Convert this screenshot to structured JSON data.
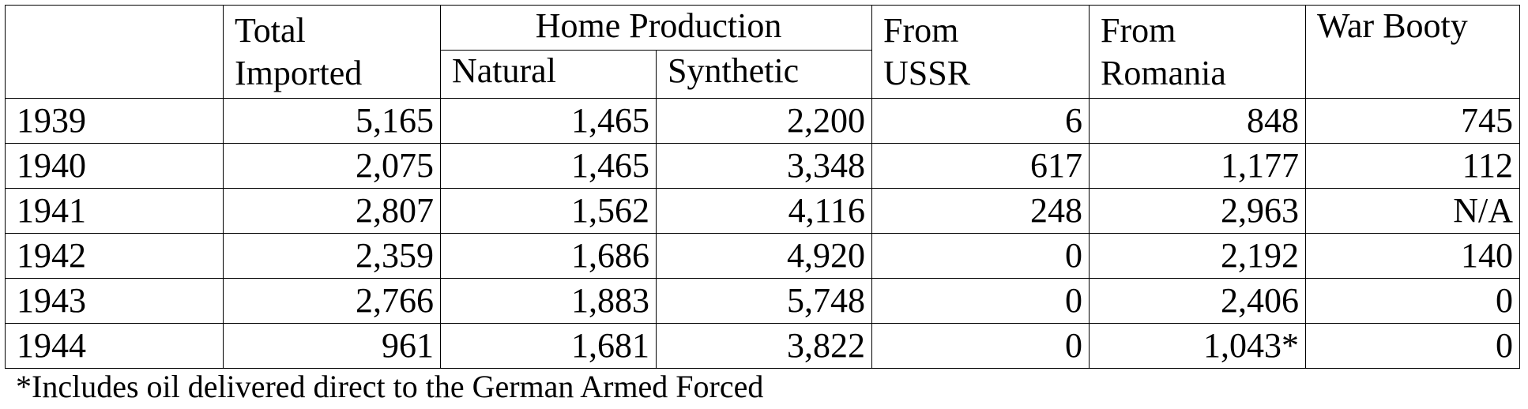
{
  "table": {
    "headers": {
      "year": "",
      "total_imported": [
        "Total",
        "Imported"
      ],
      "home_production": "Home Production",
      "natural": "Natural",
      "synthetic": "Synthetic",
      "from_ussr": [
        "From",
        "USSR"
      ],
      "from_romania": [
        "From",
        "Romania"
      ],
      "war_booty": "War Booty"
    },
    "rows": [
      {
        "year": "1939",
        "total_imported": "5,165",
        "natural": "1,465",
        "synthetic": "2,200",
        "from_ussr": "6",
        "from_romania": "848",
        "war_booty": "745"
      },
      {
        "year": "1940",
        "total_imported": "2,075",
        "natural": "1,465",
        "synthetic": "3,348",
        "from_ussr": "617",
        "from_romania": "1,177",
        "war_booty": "112"
      },
      {
        "year": "1941",
        "total_imported": "2,807",
        "natural": "1,562",
        "synthetic": "4,116",
        "from_ussr": "248",
        "from_romania": "2,963",
        "war_booty": "N/A"
      },
      {
        "year": "1942",
        "total_imported": "2,359",
        "natural": "1,686",
        "synthetic": "4,920",
        "from_ussr": "0",
        "from_romania": "2,192",
        "war_booty": "140"
      },
      {
        "year": "1943",
        "total_imported": "2,766",
        "natural": "1,883",
        "synthetic": "5,748",
        "from_ussr": "0",
        "from_romania": "2,406",
        "war_booty": "0"
      },
      {
        "year": "1944",
        "total_imported": "961",
        "natural": "1,681",
        "synthetic": "3,822",
        "from_ussr": "0",
        "from_romania": "1,043*",
        "war_booty": "0"
      }
    ]
  },
  "footnote": "*Includes oil delivered direct to the German Armed Forced"
}
